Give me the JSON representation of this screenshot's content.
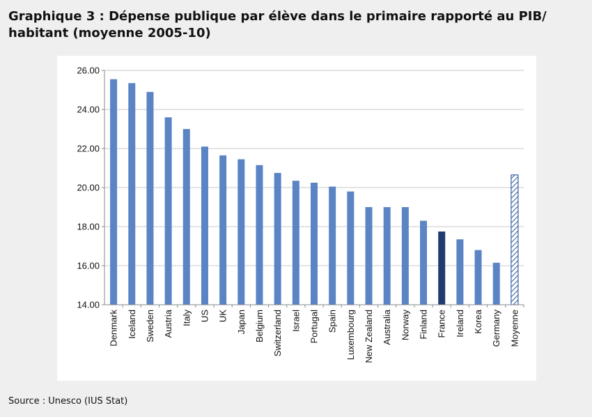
{
  "title": "Graphique 3 : Dépense publique par élève dans le primaire rapporté au PIB/ habitant (moyenne 2005-10)",
  "source": "Source : Unesco (IUS Stat)",
  "colors": {
    "bar": "#5b84c4",
    "highlight": "#1f3b70",
    "average_stroke": "#3a62a8",
    "grid": "#c8c8c8",
    "axis": "#8a8a8a"
  },
  "chart_data": {
    "type": "bar",
    "title": "",
    "xlabel": "",
    "ylabel": "",
    "ylim": [
      14,
      26
    ],
    "yticks": [
      14,
      16,
      18,
      20,
      22,
      24,
      26
    ],
    "ytick_labels": [
      "14.00",
      "16.00",
      "18.00",
      "20.00",
      "22.00",
      "24.00",
      "26.00"
    ],
    "grid": true,
    "categories": [
      "Denmark",
      "Iceland",
      "Sweden",
      "Austria",
      "Italy",
      "US",
      "UK",
      "Japan",
      "Belgium",
      "Switzerland",
      "Israel",
      "Portugal",
      "Spain",
      "Luxembourg",
      "New Zealand",
      "Australia",
      "Norway",
      "Finland",
      "France",
      "Ireland",
      "Korea",
      "Germany",
      "Moyenne"
    ],
    "values": [
      25.55,
      25.35,
      24.9,
      23.6,
      23.0,
      22.1,
      21.65,
      21.45,
      21.15,
      20.75,
      20.35,
      20.25,
      20.05,
      19.8,
      19.0,
      19.0,
      19.0,
      18.3,
      17.75,
      17.35,
      16.8,
      16.15,
      20.65
    ],
    "highlight": "France",
    "hatched": "Moyenne"
  }
}
